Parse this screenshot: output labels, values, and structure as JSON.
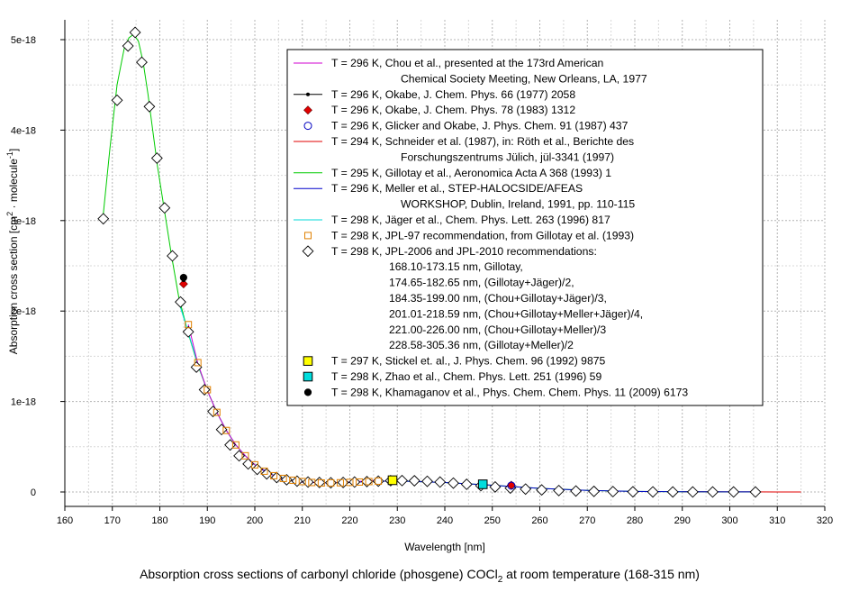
{
  "chart_data": {
    "type": "scatter",
    "xlabel": "Wavelength [nm]",
    "ylabel_parts": [
      "Absorption cross section [cm",
      "2",
      " · molecule",
      "-1",
      "]"
    ],
    "caption_parts": [
      "Absorption cross sections of carbonyl chloride (phosgene) COCl",
      "2",
      " at room temperature (168-315 nm)"
    ],
    "xlim": [
      160,
      320
    ],
    "ylim": [
      -5e-20,
      5.1e-18
    ],
    "x_ticks": [
      160,
      170,
      180,
      190,
      200,
      210,
      220,
      230,
      240,
      250,
      260,
      270,
      280,
      290,
      300,
      310,
      320
    ],
    "x_tick_labels": [
      "160",
      "170",
      "180",
      "190",
      "200",
      "210",
      "220",
      "230",
      "240",
      "250",
      "260",
      "270",
      "280",
      "290",
      "300",
      "310",
      "320"
    ],
    "y_ticks": [
      0,
      1e-18,
      2e-18,
      3e-18,
      4e-18,
      5e-18
    ],
    "y_tick_labels": [
      "0",
      "1e-18",
      "2e-18",
      "3e-18",
      "4e-18",
      "5e-18"
    ],
    "grid": true,
    "legend_position": "top-right",
    "series": [
      {
        "name": "chou",
        "kind": "line",
        "color": "#d000d0",
        "x": [
          186,
          188,
          190,
          192,
          194,
          196,
          198,
          200,
          205,
          210,
          215,
          220,
          226
        ],
        "y": [
          1.85e-18,
          1.42e-18,
          1.12e-18,
          8.8e-19,
          6.8e-19,
          5.2e-19,
          4e-19,
          3e-19,
          1.5e-19,
          1.1e-19,
          1e-19,
          1.1e-19,
          1.3e-19
        ]
      },
      {
        "name": "okabe77",
        "kind": "line-dot",
        "color": "#000000",
        "x": [
          185
        ],
        "y": [
          2.34e-18
        ]
      },
      {
        "name": "okabe83",
        "kind": "diamond-filled",
        "color": "#e00000",
        "x": [
          185,
          254
        ],
        "y": [
          2.3e-18,
          7.5e-20
        ]
      },
      {
        "name": "glicker",
        "kind": "circle-open",
        "color": "#0000c0",
        "x": [
          254
        ],
        "y": [
          7e-20
        ]
      },
      {
        "name": "schneider",
        "kind": "line",
        "color": "#e00000",
        "x": [
          290,
          295,
          300,
          305,
          310,
          315
        ],
        "y": [
          2e-21,
          1.5e-21,
          1e-21,
          7e-22,
          4e-22,
          2e-22
        ]
      },
      {
        "name": "gillotay",
        "kind": "line",
        "color": "#00cc00",
        "x": [
          168,
          169.5,
          171,
          172.5,
          173.5,
          174.5,
          175.5,
          176.5,
          177.5,
          178.5,
          179.5,
          181,
          182.5,
          184,
          186,
          188,
          190,
          192,
          194,
          196,
          198,
          200,
          205,
          210,
          215,
          220,
          225,
          230,
          240,
          250,
          260,
          270,
          280,
          290,
          300,
          305
        ],
        "y": [
          3.02e-18,
          3.8e-18,
          4.5e-18,
          4.9e-18,
          5.02e-18,
          5.06e-18,
          4.98e-18,
          4.75e-18,
          4.4e-18,
          4e-18,
          3.6e-18,
          3.1e-18,
          2.6e-18,
          2.15e-18,
          1.75e-18,
          1.4e-18,
          1.12e-18,
          8.8e-19,
          6.8e-19,
          5.2e-19,
          4e-19,
          3e-19,
          1.55e-19,
          1.1e-19,
          1e-19,
          1.08e-19,
          1.18e-19,
          1.22e-19,
          1.05e-19,
          7.5e-20,
          4e-20,
          1.8e-20,
          6e-21,
          2e-21,
          1e-21,
          5e-22
        ]
      },
      {
        "name": "meller",
        "kind": "line",
        "color": "#0000cc",
        "x": [
          201,
          205,
          210,
          215,
          220,
          225,
          230,
          240,
          250,
          260,
          270,
          280,
          290,
          300,
          305
        ],
        "y": [
          2.6e-19,
          1.55e-19,
          1.1e-19,
          1e-19,
          1.08e-19,
          1.18e-19,
          1.22e-19,
          1.05e-19,
          7.5e-20,
          4e-20,
          1.8e-20,
          6e-21,
          2e-21,
          1e-21,
          5e-22
        ]
      },
      {
        "name": "jager",
        "kind": "line",
        "color": "#00d8d8",
        "x": [
          184,
          186,
          188,
          190,
          192,
          194,
          196,
          198,
          200,
          205,
          210,
          215,
          218
        ],
        "y": [
          2.1e-18,
          1.76e-18,
          1.41e-18,
          1.12e-18,
          8.8e-19,
          6.8e-19,
          5.2e-19,
          4e-19,
          3e-19,
          1.55e-19,
          1.1e-19,
          1e-19,
          1.02e-19
        ]
      },
      {
        "name": "jpl97",
        "kind": "square-open",
        "color": "#e08000",
        "x": [
          186.0,
          188.0,
          190.0,
          192.0,
          194.0,
          196.0,
          198.0,
          200.0,
          202.0,
          204.0,
          206.0,
          208.0,
          210.0,
          212.0,
          214.0,
          216.0,
          218.0,
          220.0,
          222.0,
          224.0,
          226.0
        ],
        "y": [
          1.85e-18,
          1.43e-18,
          1.13e-18,
          8.8e-19,
          6.8e-19,
          5.2e-19,
          4e-19,
          3e-19,
          2.3e-19,
          1.8e-19,
          1.5e-19,
          1.3e-19,
          1.15e-19,
          1.05e-19,
          1e-19,
          1e-19,
          1.02e-19,
          1.06e-19,
          1.1e-19,
          1.15e-19,
          1.2e-19
        ]
      },
      {
        "name": "jpl2006",
        "kind": "diamond-open",
        "color": "#000000",
        "x": [
          168.1,
          171.0,
          173.3,
          174.8,
          176.2,
          177.8,
          179.4,
          181.0,
          182.65,
          184.35,
          186.0,
          187.7,
          189.4,
          191.2,
          193.0,
          194.8,
          196.7,
          198.6,
          200.5,
          202.5,
          204.6,
          206.7,
          208.9,
          211.2,
          213.6,
          216.0,
          218.6,
          221.0,
          223.6,
          226.0,
          228.6,
          231.0,
          233.6,
          236.3,
          239.0,
          241.8,
          244.6,
          247.6,
          250.6,
          253.8,
          257.0,
          260.4,
          264.0,
          267.6,
          271.4,
          275.4,
          279.6,
          283.8,
          288.0,
          292.2,
          296.4,
          300.8,
          305.4
        ],
        "y": [
          3.02e-18,
          4.33e-18,
          4.93e-18,
          5.08e-18,
          4.75e-18,
          4.26e-18,
          3.69e-18,
          3.14e-18,
          2.61e-18,
          2.1e-18,
          1.77e-18,
          1.38e-18,
          1.13e-18,
          8.9e-19,
          6.9e-19,
          5.2e-19,
          4e-19,
          3.1e-19,
          2.5e-19,
          2e-19,
          1.6e-19,
          1.35e-19,
          1.2e-19,
          1.1e-19,
          1.05e-19,
          1.02e-19,
          1.05e-19,
          1.1e-19,
          1.15e-19,
          1.2e-19,
          1.25e-19,
          1.26e-19,
          1.24e-19,
          1.18e-19,
          1.1e-19,
          9.8e-20,
          8.5e-20,
          7e-20,
          5.6e-20,
          4.3e-20,
          3.2e-20,
          2.3e-20,
          1.6e-20,
          1.1e-20,
          7e-21,
          4e-21,
          2e-21,
          1e-21,
          5e-22,
          3e-22,
          2e-22,
          1e-22,
          5e-23
        ]
      },
      {
        "name": "stickel",
        "kind": "square-filled",
        "color": "#ffff00",
        "x": [
          229
        ],
        "y": [
          1.3e-19
        ]
      },
      {
        "name": "zhao",
        "kind": "square-filled",
        "color": "#00dddd",
        "x": [
          248
        ],
        "y": [
          8.5e-20
        ]
      },
      {
        "name": "khamaganov",
        "kind": "circle-filled",
        "color": "#000000",
        "x": [
          185
        ],
        "y": [
          2.37e-18
        ]
      }
    ],
    "legend": [
      {
        "series": "chou",
        "lines": [
          "T = 296 K, Chou et al., presented at the 173rd American",
          "Chemical Society Meeting, New Orleans, LA, 1977"
        ]
      },
      {
        "series": "okabe77",
        "lines": [
          "T = 296 K, Okabe, J. Chem. Phys. 66 (1977) 2058"
        ]
      },
      {
        "series": "okabe83",
        "lines": [
          "T = 296 K, Okabe, J. Chem. Phys. 78 (1983) 1312"
        ]
      },
      {
        "series": "glicker",
        "lines": [
          "T = 296 K, Glicker and Okabe, J. Phys. Chem. 91 (1987) 437"
        ]
      },
      {
        "series": "schneider",
        "lines": [
          "T = 294 K, Schneider et al. (1987), in: Röth et al.,  Berichte des",
          "Forschungszentrums Jülich, jül-3341 (1997)"
        ]
      },
      {
        "series": "gillotay",
        "lines": [
          "T = 295 K, Gillotay et al., Aeronomica Acta A 368 (1993) 1"
        ]
      },
      {
        "series": "meller",
        "lines": [
          "T = 296 K, Meller et al., STEP-HALOCSIDE/AFEAS",
          "WORKSHOP, Dublin, Ireland, 1991, pp. 110-115"
        ]
      },
      {
        "series": "jager",
        "lines": [
          "T = 298 K, Jäger et al., Chem. Phys. Lett. 263 (1996) 817"
        ]
      },
      {
        "series": "jpl97",
        "lines": [
          "T = 298 K, JPL-97 recommendation, from Gillotay et al. (1993)"
        ]
      },
      {
        "series": "jpl2006",
        "lines": [
          "T = 298 K, JPL-2006 and JPL-2010 recommendations:",
          "168.10-173.15 nm, Gillotay,",
          "174.65-182.65 nm, (Gillotay+Jäger)/2,",
          "184.35-199.00 nm, (Chou+Gillotay+Jäger)/3,",
          "201.01-218.59 nm, (Chou+Gillotay+Meller+Jäger)/4,",
          "221.00-226.00 nm, (Chou+Gillotay+Meller)/3",
          "228.58-305.36 nm, (Gillotay+Meller)/2"
        ]
      },
      {
        "series": "stickel",
        "lines": [
          "T = 297 K, Stickel et. al., J. Phys. Chem. 96 (1992) 9875"
        ]
      },
      {
        "series": "zhao",
        "lines": [
          "T = 298 K, Zhao et al., Chem. Phys. Lett. 251 (1996) 59"
        ]
      },
      {
        "series": "khamaganov",
        "lines": [
          "T = 298 K, Khamaganov et al., Phys. Chem. Chem. Phys. 11 (2009) 6173"
        ]
      }
    ]
  }
}
